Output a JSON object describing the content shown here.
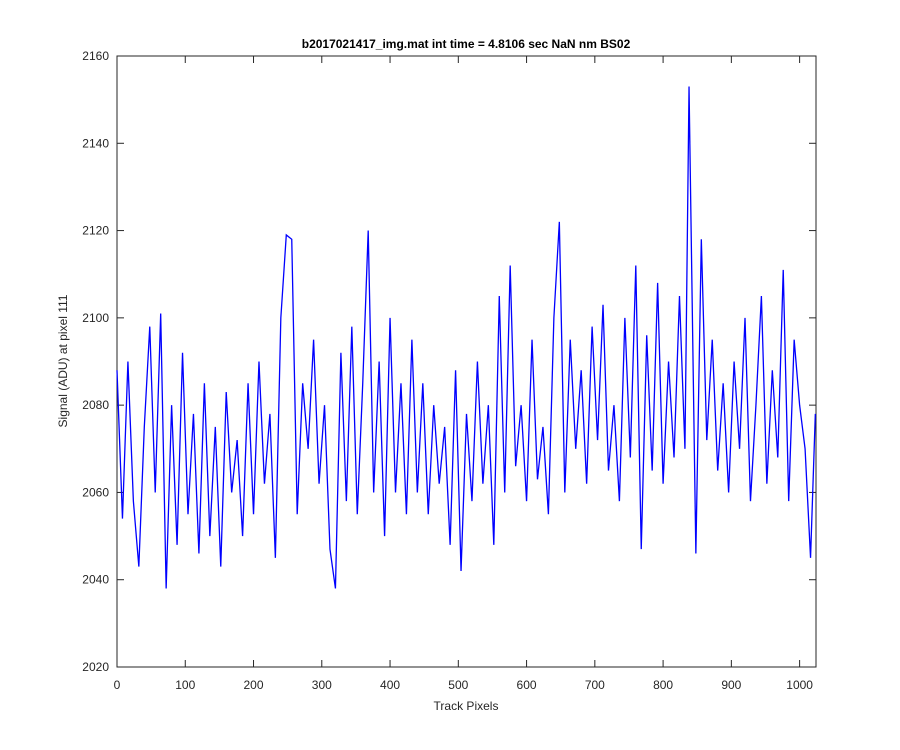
{
  "chart_data": {
    "type": "line",
    "title": "b2017021417_img.mat int time = 4.8106 sec  NaN nm BS02",
    "x_label": "Track Pixels",
    "y_label": "Signal (ADU) at pixel 111",
    "color": "#0000ff",
    "x": [
      0,
      8,
      16,
      24,
      32,
      40,
      48,
      56,
      64,
      72,
      80,
      88,
      96,
      104,
      112,
      120,
      128,
      136,
      144,
      152,
      160,
      168,
      176,
      184,
      192,
      200,
      208,
      216,
      224,
      232,
      240,
      248,
      256,
      264,
      272,
      280,
      288,
      296,
      304,
      312,
      320,
      328,
      336,
      344,
      352,
      360,
      368,
      376,
      384,
      392,
      400,
      408,
      416,
      424,
      432,
      440,
      448,
      456,
      464,
      472,
      480,
      488,
      496,
      504,
      512,
      520,
      528,
      536,
      544,
      552,
      560,
      568,
      576,
      584,
      592,
      600,
      608,
      616,
      624,
      632,
      640,
      648,
      656,
      664,
      672,
      680,
      688,
      696,
      704,
      712,
      720,
      728,
      736,
      744,
      752,
      760,
      768,
      776,
      784,
      792,
      800,
      808,
      816,
      824,
      832,
      838,
      848,
      856,
      864,
      872,
      880,
      888,
      896,
      904,
      912,
      920,
      928,
      936,
      944,
      952,
      960,
      968,
      976,
      984,
      992,
      1000,
      1008,
      1016,
      1023
    ],
    "values": [
      2088,
      2054,
      2090,
      2058,
      2043,
      2075,
      2098,
      2060,
      2101,
      2038,
      2080,
      2048,
      2092,
      2055,
      2078,
      2046,
      2085,
      2050,
      2075,
      2043,
      2083,
      2060,
      2072,
      2050,
      2085,
      2055,
      2090,
      2062,
      2078,
      2045,
      2100,
      2119,
      2118,
      2055,
      2085,
      2070,
      2095,
      2062,
      2080,
      2047,
      2038,
      2092,
      2058,
      2098,
      2055,
      2085,
      2120,
      2060,
      2090,
      2050,
      2100,
      2060,
      2085,
      2055,
      2095,
      2060,
      2085,
      2055,
      2080,
      2062,
      2075,
      2048,
      2088,
      2042,
      2078,
      2058,
      2090,
      2062,
      2080,
      2048,
      2105,
      2060,
      2112,
      2066,
      2080,
      2058,
      2095,
      2063,
      2075,
      2055,
      2100,
      2122,
      2060,
      2095,
      2070,
      2088,
      2062,
      2098,
      2072,
      2103,
      2065,
      2080,
      2058,
      2100,
      2068,
      2112,
      2047,
      2096,
      2065,
      2108,
      2062,
      2090,
      2068,
      2105,
      2070,
      2153,
      2046,
      2118,
      2072,
      2095,
      2065,
      2085,
      2060,
      2090,
      2070,
      2100,
      2058,
      2080,
      2105,
      2062,
      2088,
      2068,
      2111,
      2058,
      2095,
      2080,
      2070,
      2045,
      2078
    ],
    "xlim": [
      0,
      1024
    ],
    "xticks": [
      0,
      100,
      200,
      300,
      400,
      500,
      600,
      700,
      800,
      900,
      1000
    ],
    "ylim": [
      2020,
      2160
    ],
    "yticks": [
      2020,
      2040,
      2060,
      2080,
      2100,
      2120,
      2140,
      2160
    ]
  }
}
